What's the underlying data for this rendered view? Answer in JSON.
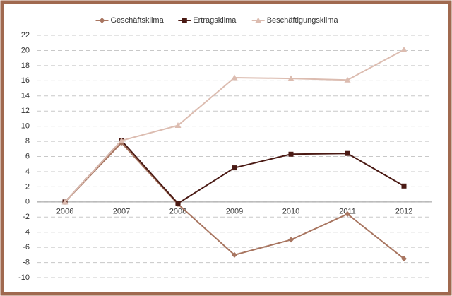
{
  "chart_data": {
    "type": "line",
    "categories": [
      "2006",
      "2007",
      "2008",
      "2009",
      "2010",
      "2011",
      "2012"
    ],
    "series": [
      {
        "name": "Geschäftsklima",
        "color": "#a87560",
        "marker": "diamond",
        "values": [
          0,
          7.8,
          -0.3,
          -7,
          -5,
          -1.6,
          -7.5
        ]
      },
      {
        "name": "Ertragsklima",
        "color": "#4a1a14",
        "marker": "square",
        "values": [
          0,
          8.1,
          -0.2,
          4.5,
          6.3,
          6.4,
          2.1
        ]
      },
      {
        "name": "Beschäftigungsklima",
        "color": "#dcbcb0",
        "marker": "triangle",
        "values": [
          0,
          8.1,
          10.1,
          16.4,
          16.3,
          16.1,
          20.1
        ]
      }
    ],
    "ylim": [
      -10,
      22
    ],
    "yticks": [
      -10,
      -8,
      -6,
      -4,
      -2,
      0,
      2,
      4,
      6,
      8,
      10,
      12,
      14,
      16,
      18,
      20,
      22
    ],
    "grid": true,
    "legend": "top"
  }
}
